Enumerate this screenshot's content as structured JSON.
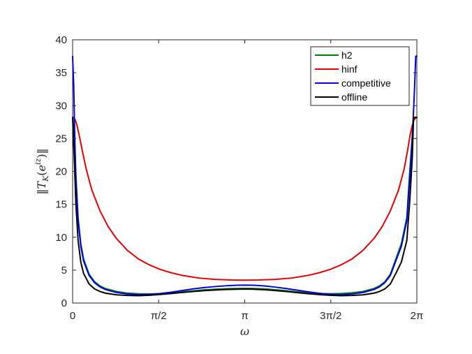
{
  "chart_data": {
    "type": "line",
    "xlabel": "ω",
    "ylabel": "‖T_K(e^{iz})‖",
    "xlim": [
      0,
      6.2832
    ],
    "ylim": [
      0,
      40
    ],
    "xticks": [
      {
        "value": 0,
        "label": "0"
      },
      {
        "value": 1.5708,
        "label": "π/2"
      },
      {
        "value": 3.1416,
        "label": "π"
      },
      {
        "value": 4.7124,
        "label": "3π/2"
      },
      {
        "value": 6.2832,
        "label": "2π"
      }
    ],
    "yticks": [
      0,
      5,
      10,
      15,
      20,
      25,
      30,
      35,
      40
    ],
    "grid": false,
    "legend_position": "top-right",
    "series": [
      {
        "name": "h2",
        "color": "#008000",
        "x": [
          0.0,
          0.03,
          0.06,
          0.1,
          0.15,
          0.2,
          0.3,
          0.4,
          0.5,
          0.6,
          0.8,
          1.0,
          1.2,
          1.4,
          1.6,
          1.8,
          2.0,
          2.2,
          2.4,
          2.6,
          2.8,
          3.0,
          3.1416,
          3.3,
          3.5,
          3.7,
          3.9,
          4.1,
          4.3,
          4.5,
          4.7,
          4.9,
          5.1,
          5.3,
          5.5,
          5.6,
          5.7,
          5.8,
          5.9,
          6.0,
          6.1,
          6.15,
          6.2,
          6.2232,
          6.25,
          6.2832
        ],
        "y": [
          28.2,
          25.5,
          19.5,
          13.0,
          9.0,
          6.7,
          4.4,
          3.25,
          2.6,
          2.2,
          1.75,
          1.5,
          1.4,
          1.38,
          1.42,
          1.55,
          1.7,
          1.85,
          2.0,
          2.1,
          2.18,
          2.22,
          2.23,
          2.22,
          2.15,
          2.02,
          1.87,
          1.7,
          1.55,
          1.45,
          1.4,
          1.45,
          1.55,
          1.75,
          2.2,
          2.6,
          3.25,
          4.4,
          6.7,
          9.0,
          13.0,
          19.5,
          25.5,
          28.2,
          28.2,
          28.2
        ]
      },
      {
        "name": "hinf",
        "color": "#e60000",
        "x": [
          0.0,
          0.02,
          0.05,
          0.08,
          0.12,
          0.18,
          0.25,
          0.35,
          0.5,
          0.65,
          0.8,
          1.0,
          1.2,
          1.4,
          1.6,
          1.8,
          2.0,
          2.3,
          2.6,
          2.9,
          3.1416,
          3.4,
          3.7,
          4.0,
          4.3,
          4.5,
          4.7,
          4.9,
          5.1,
          5.3,
          5.5,
          5.65,
          5.8,
          5.95,
          6.05,
          6.11,
          6.16,
          6.2,
          6.23,
          6.27,
          6.2832
        ],
        "y": [
          28.2,
          28.2,
          27.8,
          27.0,
          25.5,
          23.0,
          20.3,
          17.2,
          14.0,
          11.6,
          9.8,
          8.0,
          6.7,
          5.8,
          5.1,
          4.6,
          4.2,
          3.8,
          3.6,
          3.5,
          3.48,
          3.5,
          3.6,
          3.8,
          4.2,
          4.6,
          5.1,
          5.8,
          6.7,
          8.0,
          9.8,
          11.6,
          14.0,
          17.2,
          20.3,
          23.0,
          25.5,
          27.0,
          27.8,
          28.2,
          28.2
        ]
      },
      {
        "name": "competitive",
        "color": "#0000e6",
        "x": [
          0.0,
          0.02,
          0.04,
          0.06,
          0.1,
          0.15,
          0.2,
          0.3,
          0.4,
          0.5,
          0.6,
          0.8,
          1.0,
          1.2,
          1.4,
          1.6,
          1.8,
          2.0,
          2.2,
          2.4,
          2.6,
          2.8,
          3.0,
          3.1416,
          3.3,
          3.5,
          3.7,
          3.9,
          4.1,
          4.3,
          4.5,
          4.7,
          4.9,
          5.1,
          5.3,
          5.5,
          5.6,
          5.7,
          5.8,
          5.9,
          6.0,
          6.1,
          6.15,
          6.2,
          6.2432,
          6.2632,
          6.2832
        ],
        "y": [
          37.5,
          33.0,
          25.0,
          18.5,
          12.5,
          8.6,
          6.4,
          4.2,
          3.1,
          2.45,
          2.05,
          1.6,
          1.38,
          1.28,
          1.3,
          1.45,
          1.65,
          1.9,
          2.15,
          2.35,
          2.5,
          2.62,
          2.7,
          2.72,
          2.7,
          2.6,
          2.42,
          2.2,
          1.95,
          1.7,
          1.48,
          1.32,
          1.28,
          1.38,
          1.6,
          2.05,
          2.45,
          3.1,
          4.2,
          6.4,
          8.6,
          12.5,
          18.5,
          25.0,
          33.0,
          37.5,
          37.5
        ]
      },
      {
        "name": "offline",
        "color": "#000000",
        "x": [
          0.0,
          0.03,
          0.06,
          0.1,
          0.15,
          0.2,
          0.3,
          0.4,
          0.5,
          0.6,
          0.8,
          1.0,
          1.2,
          1.4,
          1.6,
          1.8,
          2.0,
          2.2,
          2.4,
          2.6,
          2.8,
          3.0,
          3.1416,
          3.3,
          3.5,
          3.7,
          3.9,
          4.1,
          4.3,
          4.5,
          4.7,
          4.9,
          5.1,
          5.3,
          5.5,
          5.6,
          5.7,
          5.8,
          5.9,
          6.0,
          6.1,
          6.15,
          6.2,
          6.2232,
          6.25,
          6.2832
        ],
        "y": [
          28.2,
          22.0,
          15.0,
          9.5,
          6.2,
          4.5,
          2.9,
          2.15,
          1.75,
          1.5,
          1.25,
          1.15,
          1.12,
          1.18,
          1.3,
          1.45,
          1.6,
          1.75,
          1.88,
          1.98,
          2.05,
          2.1,
          2.12,
          2.1,
          2.02,
          1.9,
          1.75,
          1.58,
          1.42,
          1.28,
          1.18,
          1.12,
          1.15,
          1.25,
          1.5,
          1.75,
          2.15,
          2.9,
          4.5,
          6.2,
          9.5,
          15.0,
          22.0,
          28.2,
          28.2,
          28.2
        ]
      }
    ]
  }
}
